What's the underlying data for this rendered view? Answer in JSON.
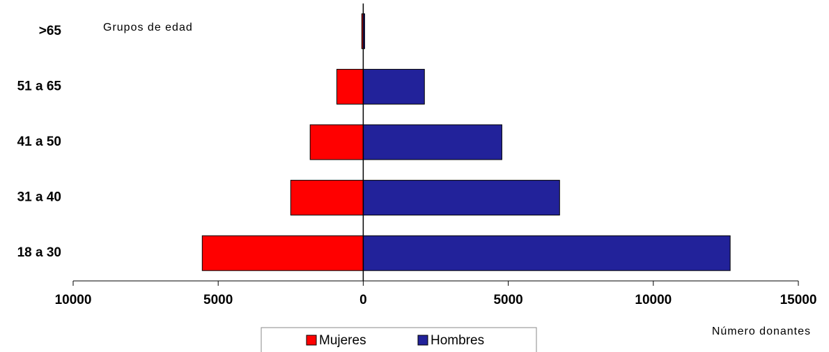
{
  "chart_data": {
    "type": "bar",
    "orientation": "horizontal",
    "y_axis_label": "Grupos de edad",
    "x_axis_label": "Número donantes",
    "categories": [
      "18 a 30",
      "31 a 40",
      "41 a 50",
      "51 a 65",
      ">65"
    ],
    "series": [
      {
        "name": "Mujeres",
        "color": "#ff0000",
        "values": [
          -5550,
          -2500,
          -1830,
          -910,
          -50
        ]
      },
      {
        "name": "Hombres",
        "color": "#22229a",
        "values": [
          12650,
          6770,
          4780,
          2110,
          50
        ]
      }
    ],
    "xlim": [
      -10000,
      15000
    ],
    "xticks": [
      {
        "value": -10000,
        "label": "10000"
      },
      {
        "value": -5000,
        "label": "5000"
      },
      0,
      5000,
      10000,
      15000
    ],
    "grid": false,
    "legend": "bottom"
  }
}
